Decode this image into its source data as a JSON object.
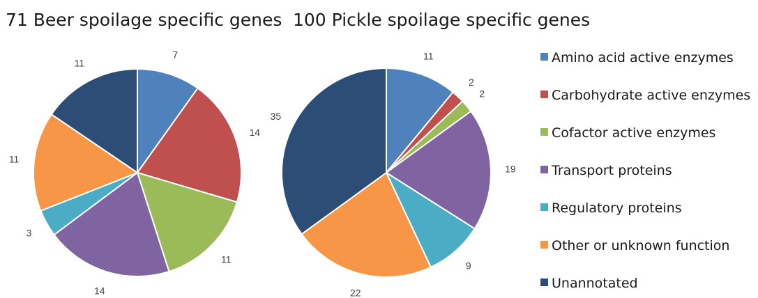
{
  "chart_data": [
    {
      "type": "pie",
      "title": "71 Beer spoilage specific genes",
      "categories": [
        "Amino acid active enzymes",
        "Carbohydrate active enzymes",
        "Cofactor active enzymes",
        "Transport proteins",
        "Regulatory proteins",
        "Other or unknown function",
        "Unannotated"
      ],
      "values": [
        7,
        14,
        11,
        14,
        3,
        11,
        11
      ],
      "data_labels": [
        "7",
        "14",
        "11",
        "14",
        "3",
        "11",
        "11"
      ]
    },
    {
      "type": "pie",
      "title": "100 Pickle spoilage specific genes",
      "categories": [
        "Amino acid active enzymes",
        "Carbohydrate active enzymes",
        "Cofactor active enzymes",
        "Transport proteins",
        "Regulatory proteins",
        "Other or unknown function",
        "Unannotated"
      ],
      "values": [
        11,
        2,
        2,
        19,
        9,
        22,
        35
      ],
      "data_labels": [
        "11",
        "2",
        "2",
        "19",
        "9",
        "22",
        "35"
      ]
    }
  ],
  "legend": {
    "placement": "right",
    "entries": [
      {
        "label": "Amino acid active enzymes",
        "color": "#4F81BD"
      },
      {
        "label": "Carbohydrate active enzymes",
        "color": "#C0504D"
      },
      {
        "label": "Cofactor active enzymes",
        "color": "#9BBB59"
      },
      {
        "label": "Transport proteins",
        "color": "#8064A2"
      },
      {
        "label": "Regulatory proteins",
        "color": "#4BACC6"
      },
      {
        "label": "Other or unknown function",
        "color": "#F79646"
      },
      {
        "label": "Unannotated",
        "color": "#2C4D75"
      }
    ]
  }
}
